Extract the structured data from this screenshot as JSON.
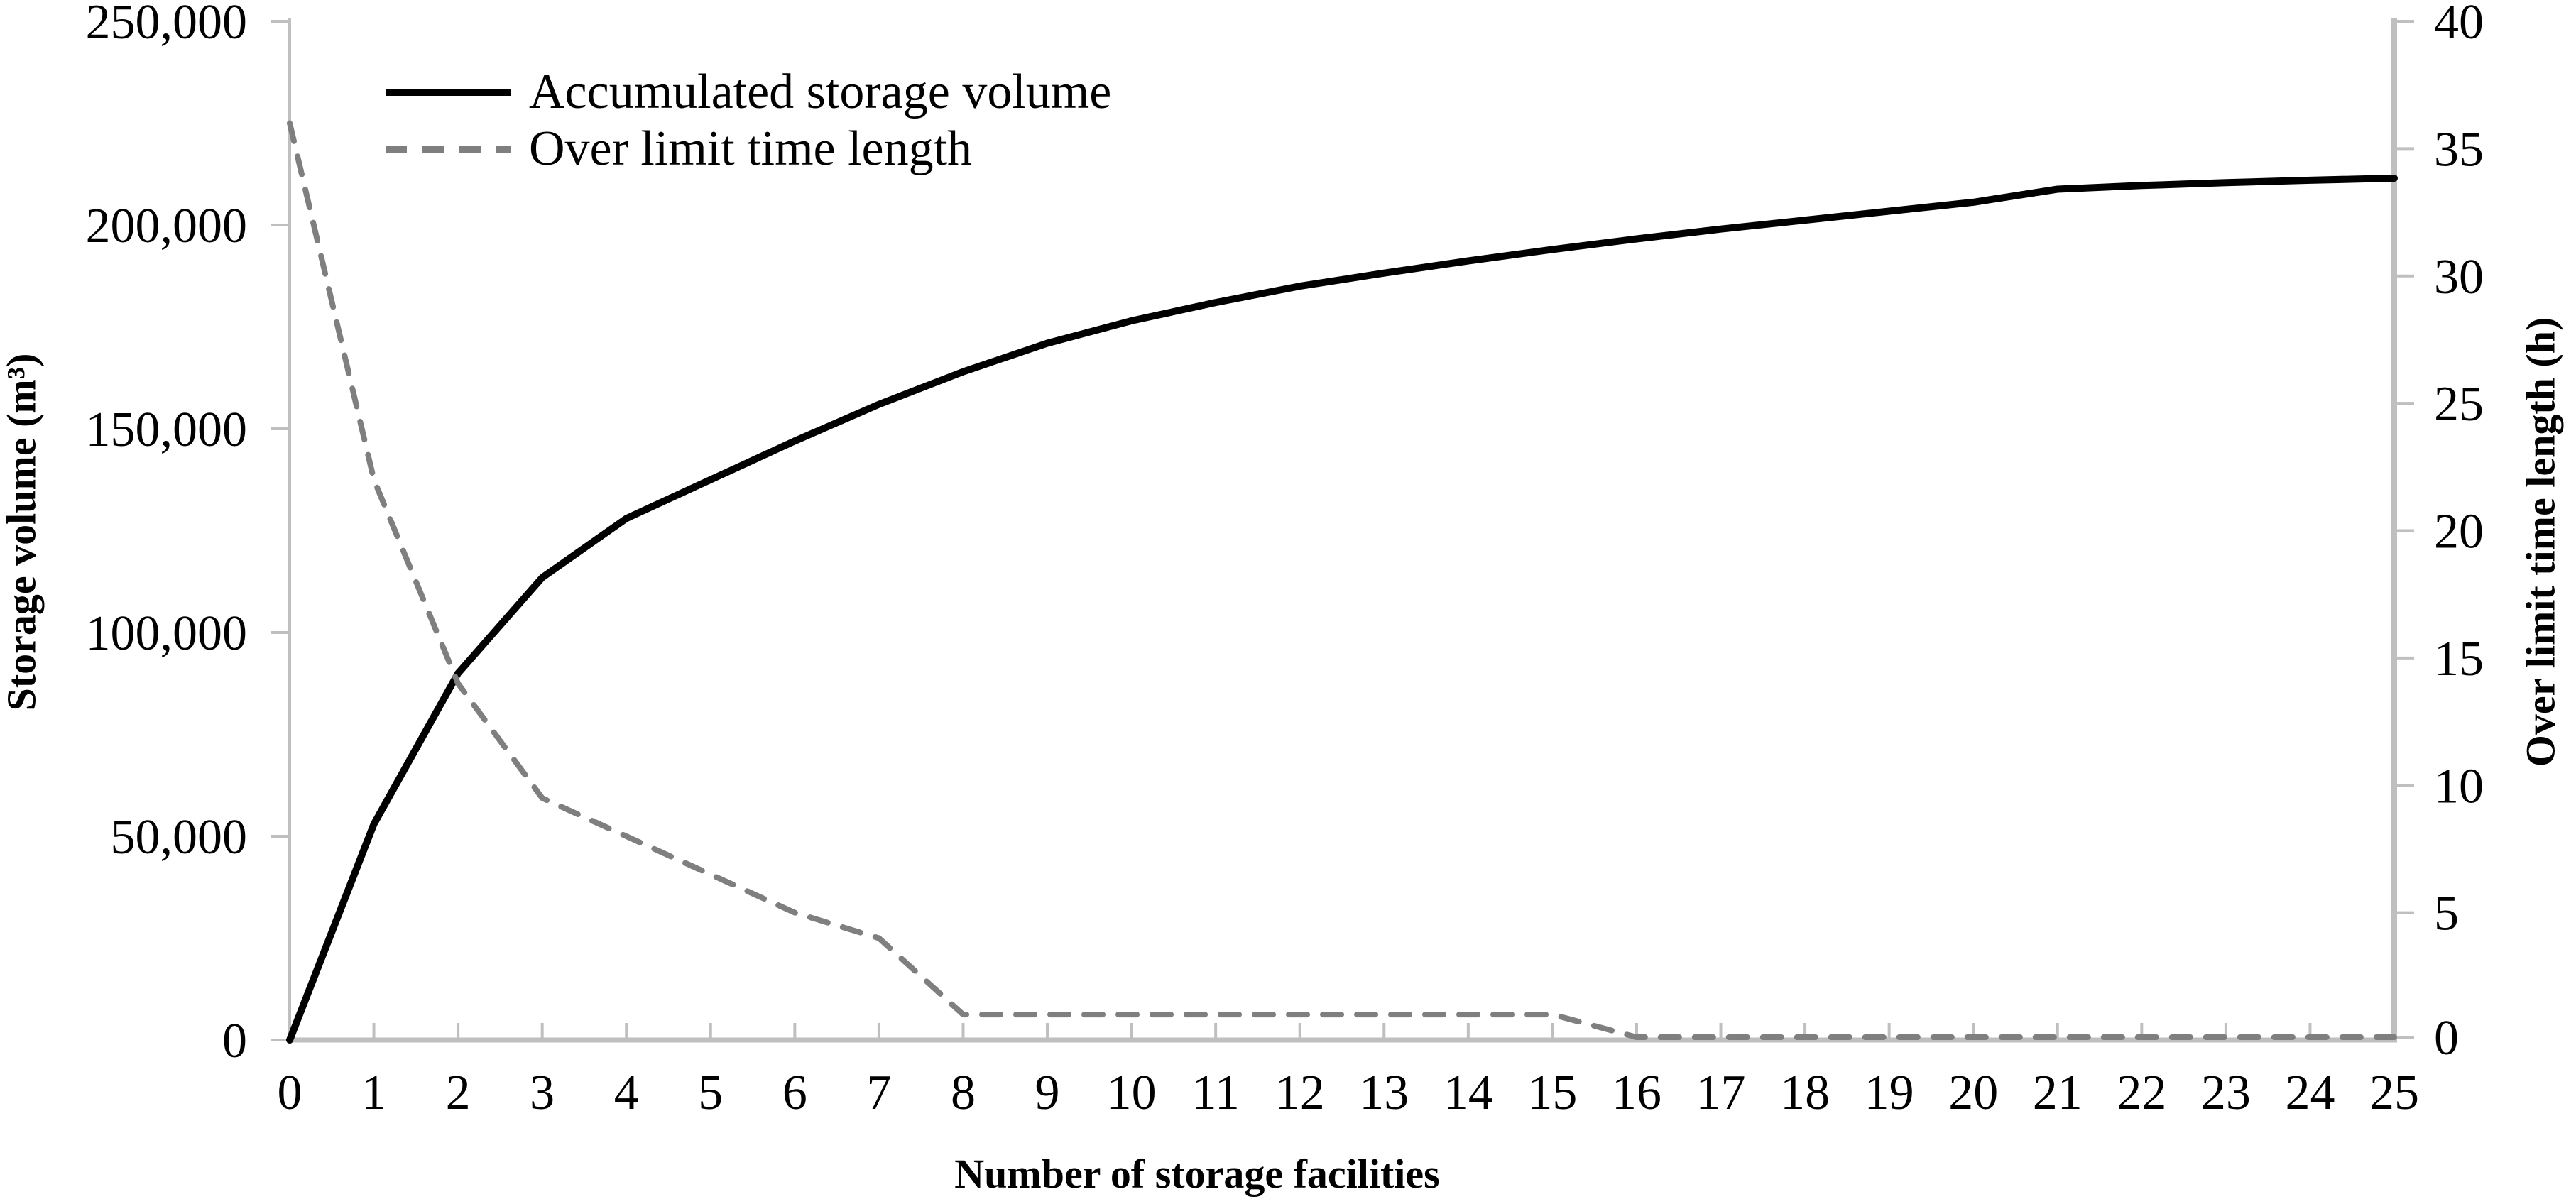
{
  "chart_data": {
    "type": "line",
    "title": "",
    "xlabel": "Number of storage facilities",
    "y_left_label": "Storage volume (m³)",
    "y_right_label": "Over limit time length (h)",
    "x_range": [
      0,
      25
    ],
    "y_left_range": [
      0,
      250000
    ],
    "y_right_range": [
      0,
      40
    ],
    "grid": "off",
    "legend_position": "top-left-inside",
    "x_tick_values": [
      0,
      1,
      2,
      3,
      4,
      5,
      6,
      7,
      8,
      9,
      10,
      11,
      12,
      13,
      14,
      15,
      16,
      17,
      18,
      19,
      20,
      21,
      22,
      23,
      24,
      25
    ],
    "x_tick_labels": [
      "0",
      "1",
      "2",
      "3",
      "4",
      "5",
      "6",
      "7",
      "8",
      "9",
      "10",
      "11",
      "12",
      "13",
      "14",
      "15",
      "16",
      "17",
      "18",
      "19",
      "20",
      "21",
      "22",
      "23",
      "24",
      "25"
    ],
    "y_left_tick_values": [
      0,
      50000,
      100000,
      150000,
      200000,
      250000
    ],
    "y_left_tick_labels": [
      "0",
      "50,000",
      "100,000",
      "150,000",
      "200,000",
      "250,000"
    ],
    "y_right_tick_values": [
      0,
      5,
      10,
      15,
      20,
      25,
      30,
      35,
      40
    ],
    "y_right_tick_labels": [
      "0",
      "5",
      "10",
      "15",
      "20",
      "25",
      "30",
      "35",
      "40"
    ],
    "x": [
      0,
      1,
      2,
      3,
      4,
      5,
      6,
      7,
      8,
      9,
      10,
      11,
      12,
      13,
      14,
      15,
      16,
      17,
      18,
      19,
      20,
      21,
      22,
      23,
      24,
      25
    ],
    "series": [
      {
        "name": "Accumulated storage volume",
        "axis": "left",
        "style": "solid",
        "color": "#000000",
        "values": [
          0,
          53000,
          90000,
          113500,
          128000,
          137500,
          147000,
          156000,
          164000,
          171000,
          176500,
          181000,
          185000,
          188200,
          191200,
          194000,
          196600,
          199000,
          201200,
          203400,
          205600,
          208800,
          209700,
          210400,
          211000,
          211500
        ]
      },
      {
        "name": "Over limit time length",
        "axis": "right",
        "style": "dashed",
        "color": "#7F7F7F",
        "values": [
          36,
          22,
          14,
          9.5,
          8,
          6.5,
          5,
          4,
          1,
          1,
          1,
          1,
          1,
          1,
          1,
          1,
          0,
          0,
          0,
          0,
          0,
          0,
          0,
          0,
          0,
          0
        ]
      }
    ]
  },
  "colors": {
    "axis": "#BFBFBF",
    "text": "#000000",
    "background": "#FFFFFF"
  }
}
